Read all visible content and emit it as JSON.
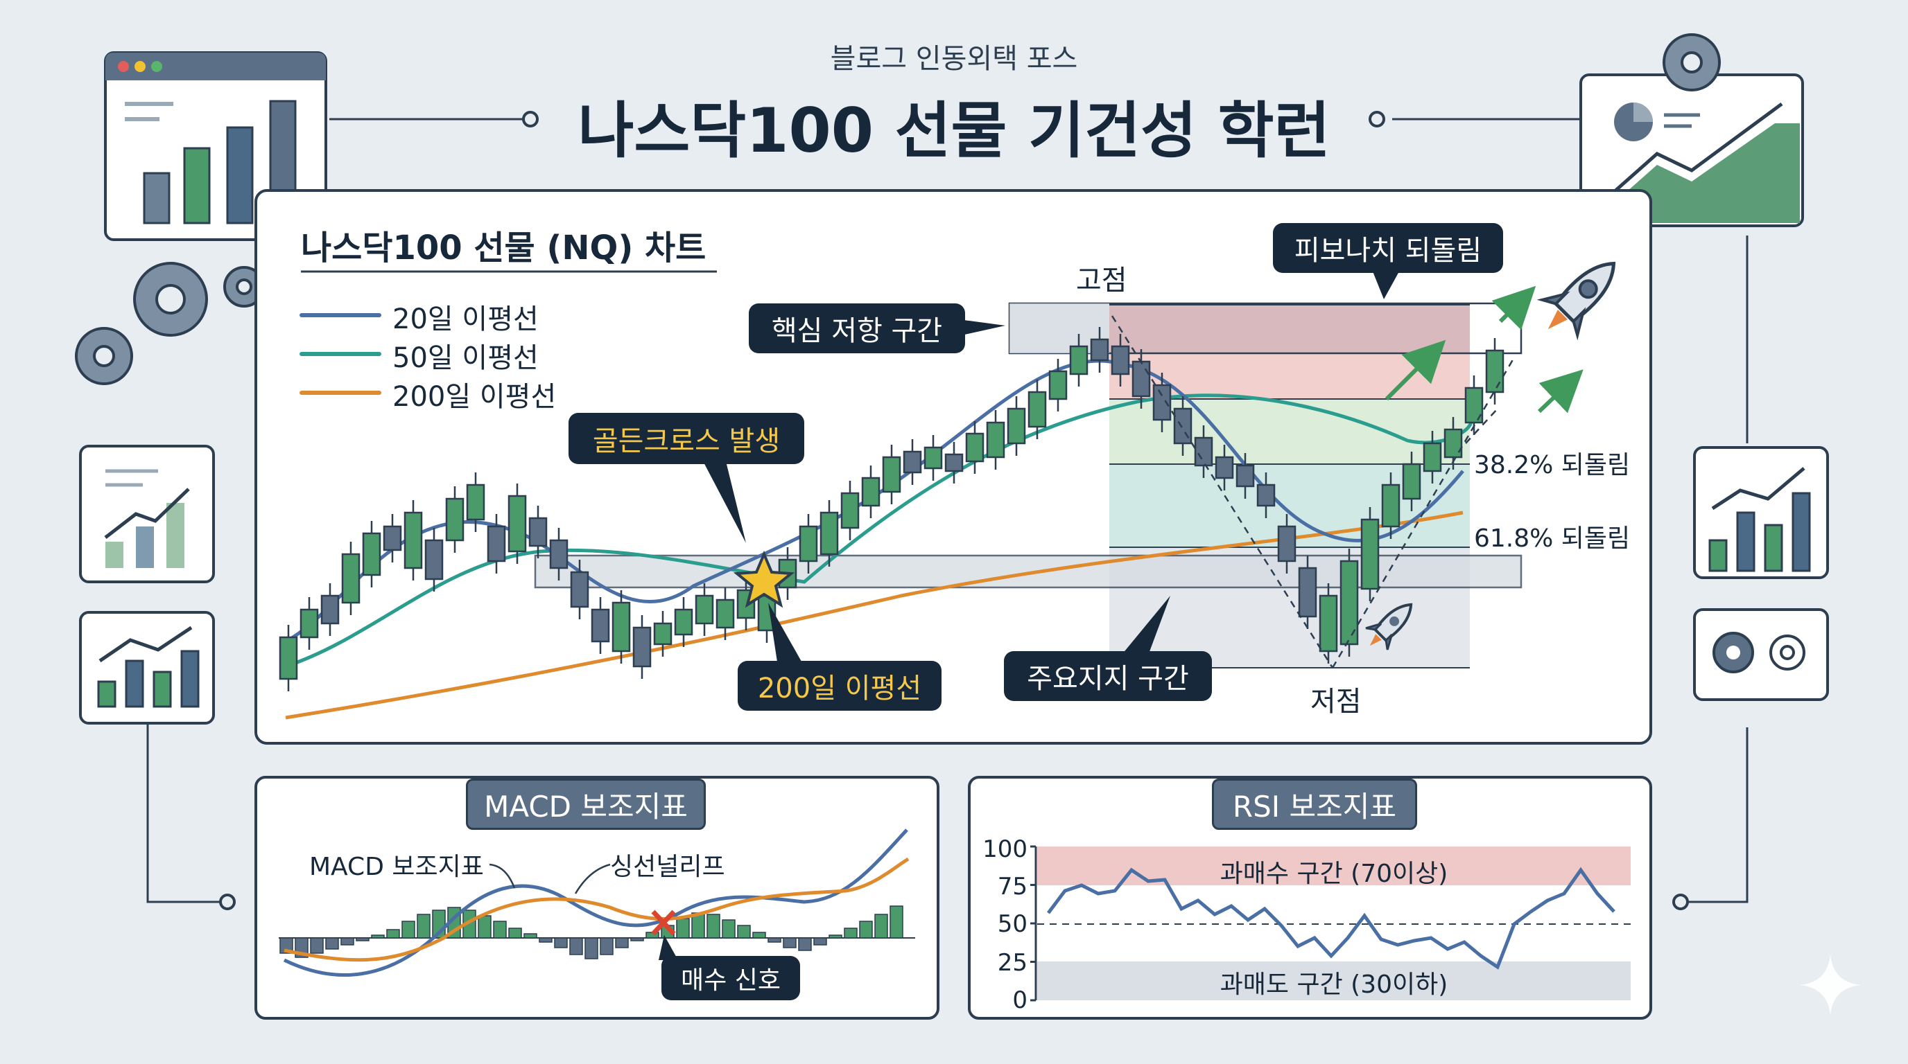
{
  "header": {
    "subtitle": "블로그 인동외택 포스",
    "title": "나스닥100 선물 기건성 학런"
  },
  "main_chart": {
    "title": "나스닥100 선물 (NQ) 차트",
    "legend": [
      {
        "label": "20일 이평선",
        "color": "#4a6fa5"
      },
      {
        "label": "50일 이평선",
        "color": "#2a9d8f"
      },
      {
        "label": "200일 이평선",
        "color": "#e08a2e"
      }
    ],
    "annotations": {
      "peak": "고점",
      "trough": "저점",
      "golden_cross": "골든크로스 발생",
      "ma200_tag": "200일 이평선",
      "resistance": "핵심 저항 구간",
      "support": "주요지지 구간",
      "fibonacci": "피보나치 되돌림",
      "fib_382": "38.2% 되돌림",
      "fib_618": "61.8% 되돌림"
    },
    "colors": {
      "up": "#4a9a6a",
      "down": "#5d6f84",
      "star": "#f2c230"
    }
  },
  "macd_panel": {
    "tab": "MACD 보조지표",
    "label_macd": "MACD 보조지표",
    "label_signal": "싱선널리프",
    "buy_signal": "매수 신호"
  },
  "rsi_panel": {
    "tab": "RSI 보조지표",
    "y_ticks": [
      "100",
      "75",
      "50",
      "25",
      "0"
    ],
    "overbought": "과매수 구간 (70이상)",
    "oversold": "과매도 구간 (30이하)"
  }
}
